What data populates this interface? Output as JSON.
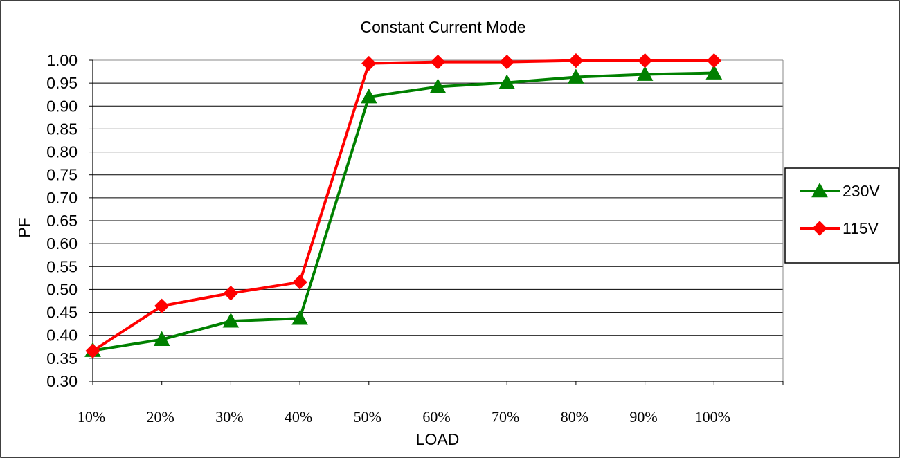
{
  "chart_data": {
    "type": "line",
    "title": "Constant Current Mode",
    "xlabel": "LOAD",
    "ylabel": "PF",
    "categories": [
      "10%",
      "20%",
      "30%",
      "40%",
      "50%",
      "60%",
      "70%",
      "80%",
      "90%",
      "100%"
    ],
    "ylim": [
      0.3,
      1.0
    ],
    "yticks": [
      "0.30",
      "0.35",
      "0.40",
      "0.45",
      "0.50",
      "0.55",
      "0.60",
      "0.65",
      "0.70",
      "0.75",
      "0.80",
      "0.85",
      "0.90",
      "0.95",
      "1.00"
    ],
    "grid": true,
    "legend_position": "right",
    "series": [
      {
        "name": "230V",
        "color": "#008000",
        "marker": "triangle",
        "values": [
          0.367,
          0.391,
          0.431,
          0.437,
          0.92,
          0.942,
          0.951,
          0.963,
          0.969,
          0.972
        ]
      },
      {
        "name": "115V",
        "color": "#ff0000",
        "marker": "diamond",
        "values": [
          0.366,
          0.464,
          0.492,
          0.516,
          0.993,
          0.996,
          0.996,
          0.999,
          0.999,
          0.999
        ]
      }
    ]
  }
}
